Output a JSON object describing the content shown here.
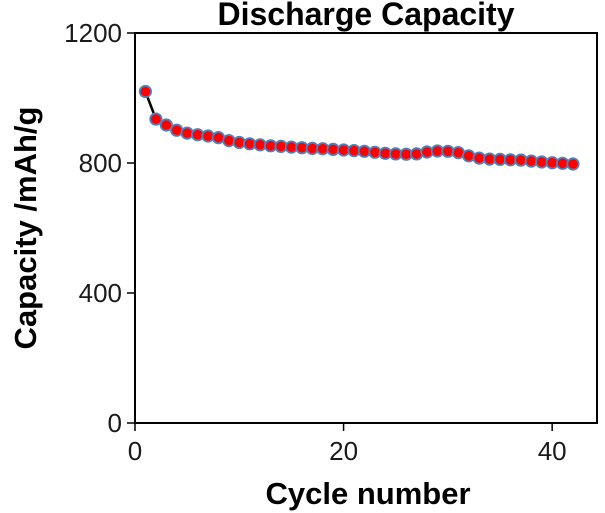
{
  "figure": {
    "background": "#ffffff"
  },
  "chart_data": {
    "type": "line",
    "title": "Discharge Capacity",
    "xlabel": "Cycle number",
    "ylabel": "Capacity /mAh/g",
    "x": [
      1,
      2,
      3,
      4,
      5,
      6,
      7,
      8,
      9,
      10,
      11,
      12,
      13,
      14,
      15,
      16,
      17,
      18,
      19,
      20,
      21,
      22,
      23,
      24,
      25,
      26,
      27,
      28,
      29,
      30,
      31,
      32,
      33,
      34,
      35,
      36,
      37,
      38,
      39,
      40,
      41,
      42
    ],
    "series": [
      {
        "name": "Discharge Capacity",
        "values": [
          1020,
          935,
          917,
          901,
          892,
          887,
          883,
          878,
          869,
          863,
          859,
          856,
          853,
          851,
          849,
          847,
          845,
          844,
          842,
          840,
          838,
          836,
          833,
          830,
          828,
          827,
          828,
          834,
          837,
          836,
          832,
          822,
          815,
          812,
          811,
          810,
          809,
          806,
          803,
          801,
          799,
          797
        ]
      }
    ],
    "xlim": [
      0,
      44.3
    ],
    "ylim": [
      0,
      1200
    ],
    "xticks": [
      0,
      20,
      40
    ],
    "yticks": [
      0,
      400,
      800,
      1200
    ],
    "grid": false,
    "legend_position": "none",
    "line_color": "#000000",
    "marker": {
      "shape": "circle",
      "fill_color": "#fe0000",
      "stroke_color": "#4f81bd"
    },
    "axis_color": "#000000",
    "tick_label_color": "#1a1a1a"
  }
}
